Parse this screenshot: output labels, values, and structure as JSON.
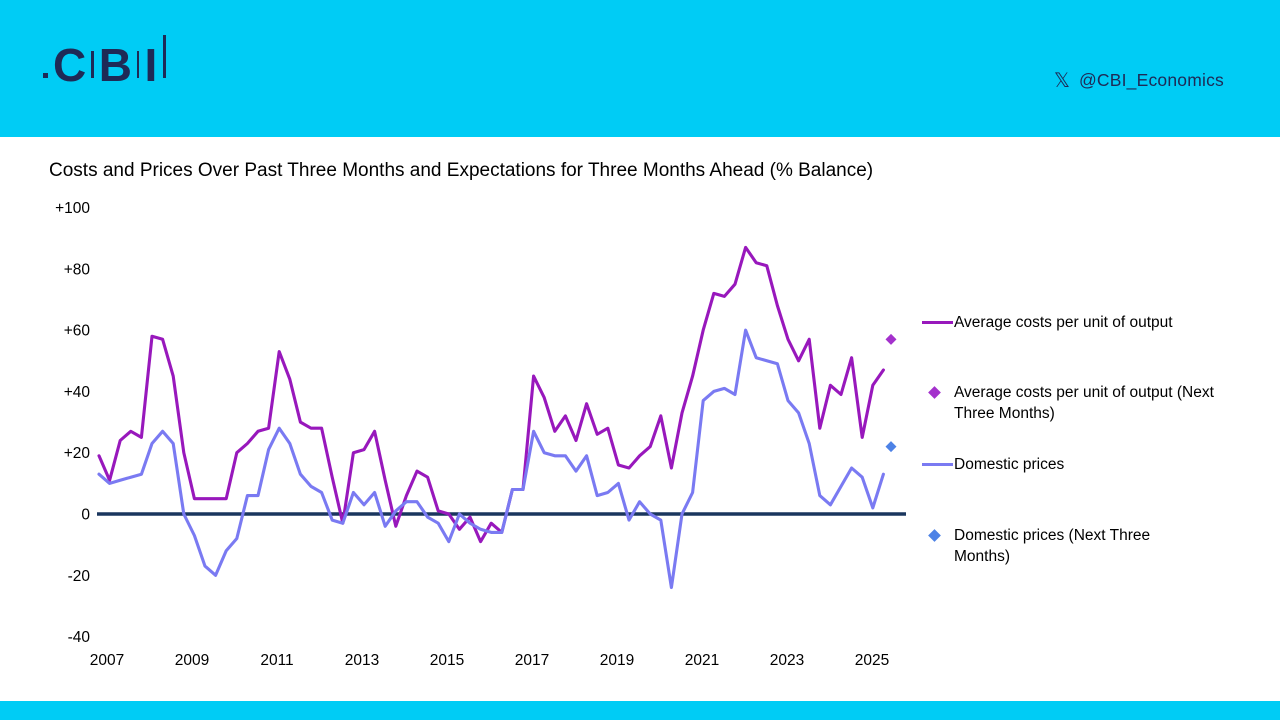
{
  "header": {
    "logo": {
      "letters": [
        "C",
        "B",
        "I"
      ]
    },
    "social": {
      "icon_glyph": "𝕏",
      "handle": "@CBI_Economics"
    }
  },
  "colors": {
    "header_bg": "#00CCF5",
    "navy": "#1E2A56",
    "zero_line": "#1A365E",
    "costs_line": "#9818BC",
    "costs_diamond": "#A431CC",
    "prices_line": "#7A7AF2",
    "prices_diamond": "#4D82E6"
  },
  "chart_data": {
    "type": "line",
    "title": "Costs and Prices Over Past Three Months and Expectations for Three Months Ahead (% Balance)",
    "x_unit": "quarterly",
    "x_start": "2007-Q1",
    "x_end": "2025-Q3",
    "ylim": [
      -40,
      100
    ],
    "grid": "off",
    "legend_position": "right",
    "x_axis": {
      "ticks": [
        2007,
        2009,
        2011,
        2013,
        2015,
        2017,
        2019,
        2021,
        2023,
        2025
      ]
    },
    "y_axis": {
      "ticks": [
        {
          "label": "+100",
          "value": 100
        },
        {
          "label": "+80",
          "value": 80
        },
        {
          "label": "+60",
          "value": 60
        },
        {
          "label": "+40",
          "value": 40
        },
        {
          "label": "+20",
          "value": 20
        },
        {
          "label": "0",
          "value": 0
        },
        {
          "label": "-20",
          "value": -20
        },
        {
          "label": "-40",
          "value": -40
        }
      ]
    },
    "series": [
      {
        "name": "Average costs per unit of output",
        "color": "#9818BC",
        "values": [
          19,
          11,
          24,
          27,
          25,
          58,
          57,
          45,
          20,
          5,
          5,
          5,
          5,
          20,
          23,
          27,
          28,
          53,
          44,
          30,
          28,
          28,
          12,
          -3,
          20,
          21,
          27,
          11,
          -4,
          6,
          14,
          12,
          1,
          0,
          -5,
          -1,
          -9,
          -3,
          -6,
          8,
          8,
          45,
          38,
          27,
          32,
          24,
          36,
          26,
          28,
          16,
          15,
          19,
          22,
          32,
          15,
          33,
          45,
          60,
          72,
          71,
          75,
          87,
          82,
          81,
          68,
          57,
          50,
          57,
          28,
          42,
          39,
          51,
          25,
          42,
          47
        ]
      },
      {
        "name": "Domestic prices",
        "color": "#7A7AF2",
        "values": [
          13,
          10,
          11,
          12,
          13,
          23,
          27,
          23,
          0,
          -7,
          -17,
          -20,
          -12,
          -8,
          6,
          6,
          21,
          28,
          23,
          13,
          9,
          7,
          -2,
          -3,
          7,
          3,
          7,
          -4,
          1,
          4,
          4,
          -1,
          -3,
          -9,
          0,
          -3,
          -5,
          -6,
          -6,
          8,
          8,
          27,
          20,
          19,
          19,
          14,
          19,
          6,
          7,
          10,
          -2,
          4,
          0,
          -2,
          -24,
          0,
          7,
          37,
          40,
          41,
          39,
          60,
          51,
          50,
          49,
          37,
          33,
          23,
          6,
          3,
          9,
          15,
          12,
          2,
          13
        ]
      }
    ],
    "forecast_points": [
      {
        "name": "Average costs per unit of output (Next Three Months)",
        "value": 57,
        "color": "#A431CC"
      },
      {
        "name": "Domestic prices (Next Three Months)",
        "value": 22,
        "color": "#4D82E6"
      }
    ],
    "legend": [
      {
        "type": "line",
        "label": "Average costs per unit of output",
        "color": "#9818BC"
      },
      {
        "type": "diamond",
        "label": "Average costs per unit of output (Next Three Months)",
        "color": "#A431CC"
      },
      {
        "type": "line",
        "label": "Domestic prices",
        "color": "#7A7AF2"
      },
      {
        "type": "diamond",
        "label": "Domestic prices (Next Three Months)",
        "color": "#4D82E6"
      }
    ]
  }
}
